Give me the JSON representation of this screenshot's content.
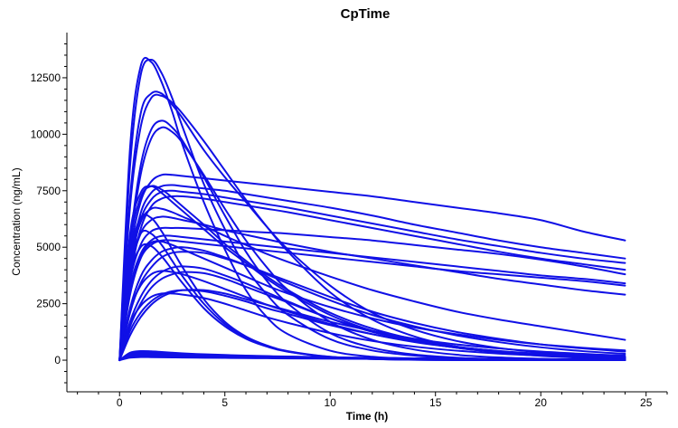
{
  "chart_data": {
    "type": "line",
    "title": "CpTime",
    "xlabel": "Time (h)",
    "ylabel": "Concentration (ng/mL)",
    "xlim": [
      -2.5,
      26
    ],
    "ylim": [
      -1400,
      14500
    ],
    "xticks": [
      0,
      5,
      10,
      15,
      20,
      25
    ],
    "yticks": [
      0,
      2500,
      5000,
      7500,
      10000,
      12500
    ],
    "xtick_labels": [
      "0",
      "5",
      "10",
      "15",
      "20",
      "25"
    ],
    "ytick_labels": [
      "0",
      "2500",
      "5000",
      "7500",
      "10000",
      "12500"
    ],
    "grid": false,
    "legend": "none",
    "line_color": "#1010e6",
    "x": [
      0,
      0.5,
      1,
      1.5,
      2,
      2.5,
      3,
      4,
      5,
      6,
      7,
      8,
      10,
      12,
      14,
      16,
      18,
      20,
      22,
      24
    ],
    "series": [
      {
        "values": [
          0,
          9400,
          13000,
          13200,
          12300,
          11000,
          9500,
          7000,
          4900,
          3100,
          1900,
          1150,
          420,
          150,
          55,
          20,
          7,
          3,
          1,
          0
        ]
      },
      {
        "values": [
          0,
          8600,
          12600,
          13300,
          12700,
          11600,
          10300,
          7800,
          5800,
          4100,
          2900,
          2000,
          930,
          430,
          200,
          90,
          42,
          19,
          9,
          4
        ]
      },
      {
        "values": [
          0,
          7200,
          10900,
          11800,
          11800,
          11300,
          10700,
          9300,
          8100,
          7000,
          5900,
          4900,
          3300,
          2100,
          1350,
          850,
          540,
          340,
          215,
          135
        ]
      },
      {
        "values": [
          0,
          6800,
          10300,
          11600,
          11700,
          11400,
          10900,
          9700,
          8400,
          7100,
          5900,
          4800,
          3000,
          1800,
          1050,
          600,
          340,
          190,
          105,
          60
        ]
      },
      {
        "values": [
          0,
          5200,
          8600,
          10200,
          10600,
          10300,
          9700,
          8100,
          6400,
          4800,
          3500,
          2500,
          1200,
          550,
          250,
          110,
          50,
          22,
          10,
          4
        ]
      },
      {
        "values": [
          0,
          5000,
          8200,
          9800,
          10300,
          10100,
          9600,
          8200,
          6700,
          5300,
          4100,
          3100,
          1700,
          900,
          470,
          240,
          120,
          60,
          30,
          15
        ]
      },
      {
        "values": [
          0,
          4700,
          7000,
          7900,
          8200,
          8200,
          8150,
          8050,
          7950,
          7850,
          7750,
          7650,
          7450,
          7250,
          7000,
          6750,
          6500,
          6200,
          5700,
          5300
        ]
      },
      {
        "values": [
          0,
          4200,
          6500,
          7400,
          7700,
          7750,
          7700,
          7600,
          7500,
          7350,
          7200,
          7050,
          6750,
          6400,
          6000,
          5650,
          5300,
          5000,
          4750,
          4500
        ]
      },
      {
        "values": [
          0,
          4000,
          6200,
          7100,
          7450,
          7500,
          7450,
          7350,
          7200,
          7050,
          6900,
          6750,
          6400,
          6050,
          5700,
          5350,
          5050,
          4750,
          4500,
          4300
        ]
      },
      {
        "values": [
          0,
          3600,
          5800,
          6800,
          7150,
          7250,
          7250,
          7150,
          7000,
          6850,
          6700,
          6550,
          6200,
          5850,
          5500,
          5150,
          4800,
          4500,
          4250,
          4000
        ]
      },
      {
        "values": [
          0,
          5600,
          7400,
          7700,
          7400,
          7000,
          6600,
          5800,
          5000,
          4300,
          3600,
          3000,
          2000,
          1300,
          850,
          550,
          360,
          230,
          150,
          95
        ]
      },
      {
        "values": [
          0,
          5100,
          7200,
          7700,
          7550,
          7200,
          6800,
          6000,
          5150,
          4400,
          3700,
          3100,
          2100,
          1400,
          920,
          600,
          390,
          250,
          160,
          100
        ]
      },
      {
        "values": [
          0,
          4300,
          6100,
          6700,
          6700,
          6550,
          6350,
          5950,
          5500,
          5100,
          4700,
          4350,
          3700,
          3100,
          2600,
          2150,
          1800,
          1500,
          1200,
          900
        ]
      },
      {
        "values": [
          0,
          3900,
          5600,
          6200,
          6350,
          6300,
          6200,
          6000,
          5750,
          5550,
          5350,
          5150,
          4800,
          4500,
          4200,
          3900,
          3600,
          3350,
          3100,
          2900
        ]
      },
      {
        "values": [
          0,
          3500,
          5100,
          5700,
          5850,
          5850,
          5850,
          5800,
          5750,
          5700,
          5650,
          5600,
          5450,
          5300,
          5100,
          4900,
          4700,
          4450,
          4150,
          3800
        ]
      },
      {
        "values": [
          0,
          3200,
          4700,
          5300,
          5500,
          5500,
          5450,
          5350,
          5250,
          5150,
          5050,
          4950,
          4750,
          4550,
          4350,
          4150,
          3950,
          3750,
          3600,
          3400
        ]
      },
      {
        "values": [
          0,
          2900,
          4500,
          5100,
          5300,
          5300,
          5250,
          5150,
          5050,
          4950,
          4850,
          4750,
          4550,
          4350,
          4150,
          3950,
          3800,
          3650,
          3500,
          3300
        ]
      },
      {
        "values": [
          0,
          3000,
          4600,
          5200,
          5250,
          5100,
          4900,
          4500,
          4100,
          3700,
          3300,
          2950,
          2350,
          1850,
          1450,
          1150,
          900,
          700,
          550,
          430
        ]
      },
      {
        "values": [
          0,
          2300,
          3700,
          4400,
          4800,
          4950,
          5000,
          4850,
          4550,
          4200,
          3800,
          3400,
          2650,
          2000,
          1500,
          1100,
          800,
          570,
          400,
          280
        ]
      },
      {
        "values": [
          0,
          2100,
          3400,
          4100,
          4550,
          4750,
          4800,
          4750,
          4500,
          4200,
          3850,
          3500,
          2800,
          2150,
          1650,
          1250,
          950,
          700,
          520,
          380
        ]
      },
      {
        "values": [
          0,
          2200,
          3300,
          3800,
          3950,
          3900,
          3800,
          3500,
          3150,
          2800,
          2450,
          2150,
          1600,
          1150,
          800,
          560,
          390,
          270,
          180,
          120
        ]
      },
      {
        "values": [
          0,
          1700,
          2800,
          3500,
          3900,
          4100,
          4150,
          4050,
          3750,
          3400,
          3000,
          2600,
          1850,
          1250,
          850,
          550,
          350,
          220,
          140,
          90
        ]
      },
      {
        "values": [
          0,
          1500,
          2500,
          3200,
          3600,
          3800,
          3900,
          3850,
          3600,
          3250,
          2900,
          2550,
          1850,
          1300,
          900,
          600,
          400,
          260,
          170,
          110
        ]
      },
      {
        "values": [
          0,
          1600,
          2400,
          2800,
          2950,
          2950,
          2900,
          2750,
          2500,
          2200,
          1900,
          1650,
          1200,
          850,
          600,
          420,
          290,
          200,
          140,
          95
        ]
      },
      {
        "values": [
          0,
          1300,
          2100,
          2600,
          2900,
          3050,
          3100,
          3050,
          2850,
          2600,
          2300,
          2050,
          1550,
          1150,
          820,
          580,
          410,
          290,
          200,
          140
        ]
      },
      {
        "values": [
          0,
          1100,
          1900,
          2450,
          2800,
          3000,
          3100,
          3100,
          2950,
          2700,
          2450,
          2200,
          1700,
          1300,
          950,
          700,
          520,
          380,
          280,
          200
        ]
      },
      {
        "values": [
          0,
          4600,
          6300,
          6300,
          5700,
          4900,
          4100,
          2700,
          1700,
          1050,
          650,
          400,
          150,
          55,
          20,
          8,
          3,
          1,
          0,
          0
        ]
      },
      {
        "values": [
          0,
          4100,
          5600,
          5600,
          5100,
          4400,
          3700,
          2500,
          1600,
          1000,
          620,
          380,
          145,
          55,
          20,
          8,
          3,
          1,
          0,
          0
        ]
      },
      {
        "values": [
          0,
          3700,
          5000,
          5050,
          4600,
          4000,
          3400,
          2300,
          1500,
          950,
          600,
          370,
          140,
          52,
          19,
          7,
          3,
          1,
          0,
          0
        ]
      },
      {
        "values": [
          0,
          330,
          400,
          390,
          360,
          330,
          300,
          260,
          230,
          200,
          180,
          160,
          130,
          100,
          80,
          65,
          50,
          40,
          30,
          25
        ]
      },
      {
        "values": [
          0,
          280,
          340,
          330,
          310,
          290,
          270,
          240,
          210,
          190,
          170,
          150,
          120,
          95,
          75,
          60,
          48,
          38,
          30,
          24
        ]
      },
      {
        "values": [
          0,
          240,
          290,
          285,
          270,
          255,
          240,
          215,
          195,
          175,
          160,
          145,
          120,
          100,
          80,
          66,
          54,
          44,
          36,
          30
        ]
      },
      {
        "values": [
          0,
          190,
          230,
          225,
          215,
          205,
          195,
          178,
          162,
          148,
          135,
          123,
          102,
          84,
          70,
          58,
          48,
          40,
          33,
          27
        ]
      },
      {
        "values": [
          0,
          150,
          180,
          178,
          172,
          165,
          158,
          145,
          133,
          122,
          112,
          103,
          87,
          73,
          61,
          51,
          43,
          36,
          30,
          25
        ]
      },
      {
        "values": [
          0,
          110,
          135,
          133,
          128,
          123,
          118,
          109,
          100,
          92,
          85,
          78,
          66,
          56,
          47,
          40,
          34,
          29,
          24,
          20
        ]
      }
    ]
  }
}
